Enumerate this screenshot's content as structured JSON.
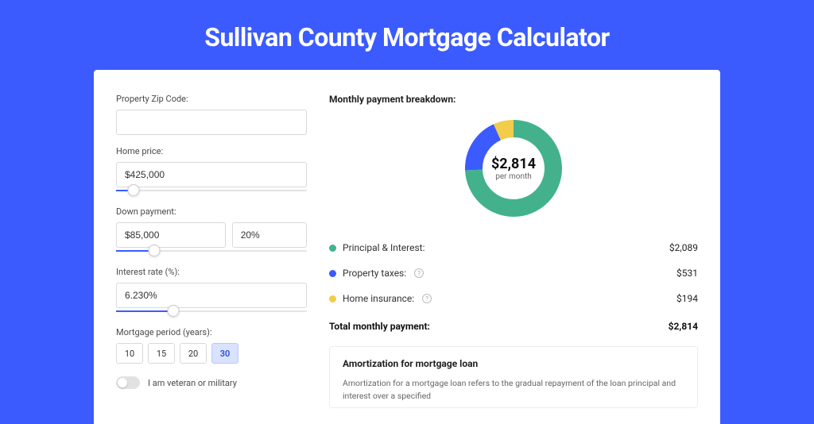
{
  "colors": {
    "page_bg": "#3b5bff",
    "card_bg": "#ffffff",
    "input_border": "#d9d9d9",
    "slider_track": "#e4e4e4",
    "slider_fill": "#3b5bff",
    "period_active_bg": "#d9e2ff"
  },
  "header": {
    "title": "Sullivan County Mortgage Calculator"
  },
  "form": {
    "zip": {
      "label": "Property Zip Code:",
      "value": ""
    },
    "home_price": {
      "label": "Home price:",
      "value": "$425,000",
      "slider_pct": 9
    },
    "down_payment": {
      "label": "Down payment:",
      "amount": "$85,000",
      "percent": "20%",
      "slider_pct": 20
    },
    "interest_rate": {
      "label": "Interest rate (%):",
      "value": "6.230%",
      "slider_pct": 30
    },
    "period": {
      "label": "Mortgage period (years):",
      "options": [
        "10",
        "15",
        "20",
        "30"
      ],
      "selected": "30"
    },
    "veteran": {
      "label": "I am veteran or military",
      "on": false
    }
  },
  "breakdown": {
    "title": "Monthly payment breakdown:",
    "center_amount": "$2,814",
    "center_sub": "per month",
    "donut": {
      "radius": 50,
      "stroke": 22,
      "segments": [
        {
          "key": "pi",
          "label": "Principal & Interest:",
          "value": "$2,089",
          "color": "#43b28c",
          "fraction": 0.742,
          "help": false
        },
        {
          "key": "tax",
          "label": "Property taxes:",
          "value": "$531",
          "color": "#3b5bff",
          "fraction": 0.189,
          "help": true
        },
        {
          "key": "ins",
          "label": "Home insurance:",
          "value": "$194",
          "color": "#f2cc4b",
          "fraction": 0.069,
          "help": true
        }
      ]
    },
    "total_label": "Total monthly payment:",
    "total_value": "$2,814"
  },
  "amortization": {
    "title": "Amortization for mortgage loan",
    "body": "Amortization for a mortgage loan refers to the gradual repayment of the loan principal and interest over a specified"
  }
}
